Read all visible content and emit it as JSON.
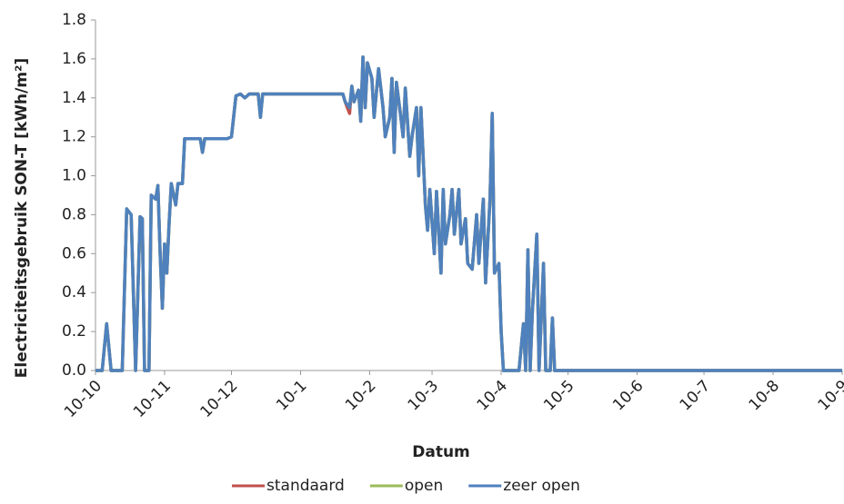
{
  "chart_data": {
    "type": "line",
    "y_label": "Electriciteitsgebruik SON-T [kWh/m²]",
    "x_label": "Datum",
    "x": [
      0,
      3,
      5,
      7,
      12,
      14,
      16,
      18,
      20,
      21,
      22,
      24,
      25,
      27,
      28,
      29,
      30,
      31,
      32,
      33,
      34,
      36,
      37,
      39,
      40,
      47,
      48,
      49,
      59,
      61,
      63,
      65,
      67,
      69,
      73,
      74,
      75,
      111,
      112,
      114,
      115,
      116,
      118,
      119,
      120,
      121,
      122,
      124,
      125,
      127,
      128,
      129,
      130,
      132,
      133,
      134,
      135,
      137,
      138,
      139,
      141,
      142,
      144,
      145,
      146,
      148,
      149,
      150,
      152,
      153,
      155,
      156,
      157,
      159,
      160,
      161,
      163,
      164,
      166,
      167,
      169,
      171,
      172,
      174,
      175,
      177,
      178,
      179,
      181,
      182,
      183,
      190,
      192,
      193,
      194,
      195,
      196,
      198,
      199,
      201,
      202,
      204,
      205,
      206,
      335
    ],
    "series": [
      {
        "name": "standaard",
        "color": "#c0504d",
        "values": [
          0,
          0,
          0.24,
          0,
          0,
          0.83,
          0.8,
          0,
          0.79,
          0.78,
          0,
          0,
          0.9,
          0.88,
          0.95,
          0.6,
          0.32,
          0.65,
          0.5,
          0.75,
          0.96,
          0.85,
          0.96,
          0.96,
          1.19,
          1.19,
          1.12,
          1.19,
          1.19,
          1.2,
          1.41,
          1.42,
          1.4,
          1.42,
          1.42,
          1.3,
          1.42,
          1.42,
          1.38,
          1.32,
          1.46,
          1.38,
          1.44,
          1.28,
          1.61,
          1.35,
          1.58,
          1.5,
          1.3,
          1.55,
          1.45,
          1.35,
          1.2,
          1.3,
          1.5,
          1.12,
          1.48,
          1.3,
          1.2,
          1.45,
          1.1,
          1.2,
          1.35,
          1.0,
          1.35,
          0.85,
          0.72,
          0.93,
          0.6,
          0.92,
          0.5,
          0.93,
          0.65,
          0.8,
          0.93,
          0.7,
          0.93,
          0.65,
          0.78,
          0.55,
          0.52,
          0.8,
          0.55,
          0.88,
          0.45,
          0.88,
          1.32,
          0.5,
          0.55,
          0.2,
          0,
          0,
          0.24,
          0,
          0.62,
          0,
          0.3,
          0.7,
          0,
          0.55,
          0,
          0,
          0.27,
          0,
          0
        ]
      },
      {
        "name": "open",
        "color": "#9bbb59",
        "values": [
          0,
          0,
          0.24,
          0,
          0,
          0.83,
          0.8,
          0,
          0.79,
          0.78,
          0,
          0,
          0.9,
          0.88,
          0.95,
          0.6,
          0.32,
          0.65,
          0.5,
          0.75,
          0.96,
          0.85,
          0.96,
          0.96,
          1.19,
          1.19,
          1.12,
          1.19,
          1.19,
          1.2,
          1.41,
          1.42,
          1.4,
          1.42,
          1.42,
          1.3,
          1.42,
          1.42,
          1.38,
          1.35,
          1.46,
          1.38,
          1.44,
          1.28,
          1.61,
          1.35,
          1.58,
          1.5,
          1.3,
          1.55,
          1.45,
          1.35,
          1.2,
          1.3,
          1.5,
          1.12,
          1.48,
          1.3,
          1.2,
          1.45,
          1.1,
          1.2,
          1.35,
          1.0,
          1.35,
          0.85,
          0.72,
          0.93,
          0.6,
          0.92,
          0.5,
          0.93,
          0.65,
          0.8,
          0.93,
          0.7,
          0.93,
          0.65,
          0.78,
          0.55,
          0.52,
          0.8,
          0.55,
          0.88,
          0.45,
          0.88,
          1.32,
          0.5,
          0.55,
          0.2,
          0,
          0,
          0.24,
          0,
          0.62,
          0,
          0.3,
          0.7,
          0,
          0.55,
          0,
          0,
          0.27,
          0,
          0
        ]
      },
      {
        "name": "zeer open",
        "color": "#4f81bd",
        "values": [
          0,
          0,
          0.24,
          0,
          0,
          0.83,
          0.8,
          0,
          0.79,
          0.78,
          0,
          0,
          0.9,
          0.88,
          0.95,
          0.6,
          0.32,
          0.65,
          0.5,
          0.75,
          0.96,
          0.85,
          0.96,
          0.96,
          1.19,
          1.19,
          1.12,
          1.19,
          1.19,
          1.2,
          1.41,
          1.42,
          1.4,
          1.42,
          1.42,
          1.3,
          1.42,
          1.42,
          1.38,
          1.35,
          1.46,
          1.38,
          1.44,
          1.28,
          1.61,
          1.35,
          1.58,
          1.5,
          1.3,
          1.55,
          1.45,
          1.35,
          1.2,
          1.3,
          1.5,
          1.12,
          1.48,
          1.3,
          1.2,
          1.45,
          1.1,
          1.2,
          1.35,
          1.0,
          1.35,
          0.85,
          0.72,
          0.93,
          0.6,
          0.92,
          0.5,
          0.93,
          0.65,
          0.8,
          0.93,
          0.7,
          0.93,
          0.65,
          0.78,
          0.55,
          0.52,
          0.8,
          0.55,
          0.88,
          0.45,
          0.88,
          1.32,
          0.5,
          0.55,
          0.2,
          0,
          0,
          0.24,
          0,
          0.62,
          0,
          0.3,
          0.7,
          0,
          0.55,
          0,
          0,
          0.27,
          0,
          0
        ]
      }
    ],
    "xlim": [
      0,
      335
    ],
    "xticks": [
      {
        "value": 0,
        "label": "10-10"
      },
      {
        "value": 31,
        "label": "10-11"
      },
      {
        "value": 61,
        "label": "10-12"
      },
      {
        "value": 92,
        "label": "10-1"
      },
      {
        "value": 123,
        "label": "10-2"
      },
      {
        "value": 151,
        "label": "10-3"
      },
      {
        "value": 182,
        "label": "10-4"
      },
      {
        "value": 212,
        "label": "10-5"
      },
      {
        "value": 243,
        "label": "10-6"
      },
      {
        "value": 273,
        "label": "10-7"
      },
      {
        "value": 304,
        "label": "10-8"
      },
      {
        "value": 335,
        "label": "10-9"
      }
    ],
    "ylim": [
      0,
      1.8
    ],
    "yticks": [
      {
        "value": 0,
        "label": "0.0"
      },
      0.2,
      0.4,
      0.6,
      0.8,
      {
        "value": 1,
        "label": "1.0"
      },
      1.2,
      1.4,
      1.6,
      1.8
    ],
    "grid": false,
    "legend": "bottom"
  }
}
